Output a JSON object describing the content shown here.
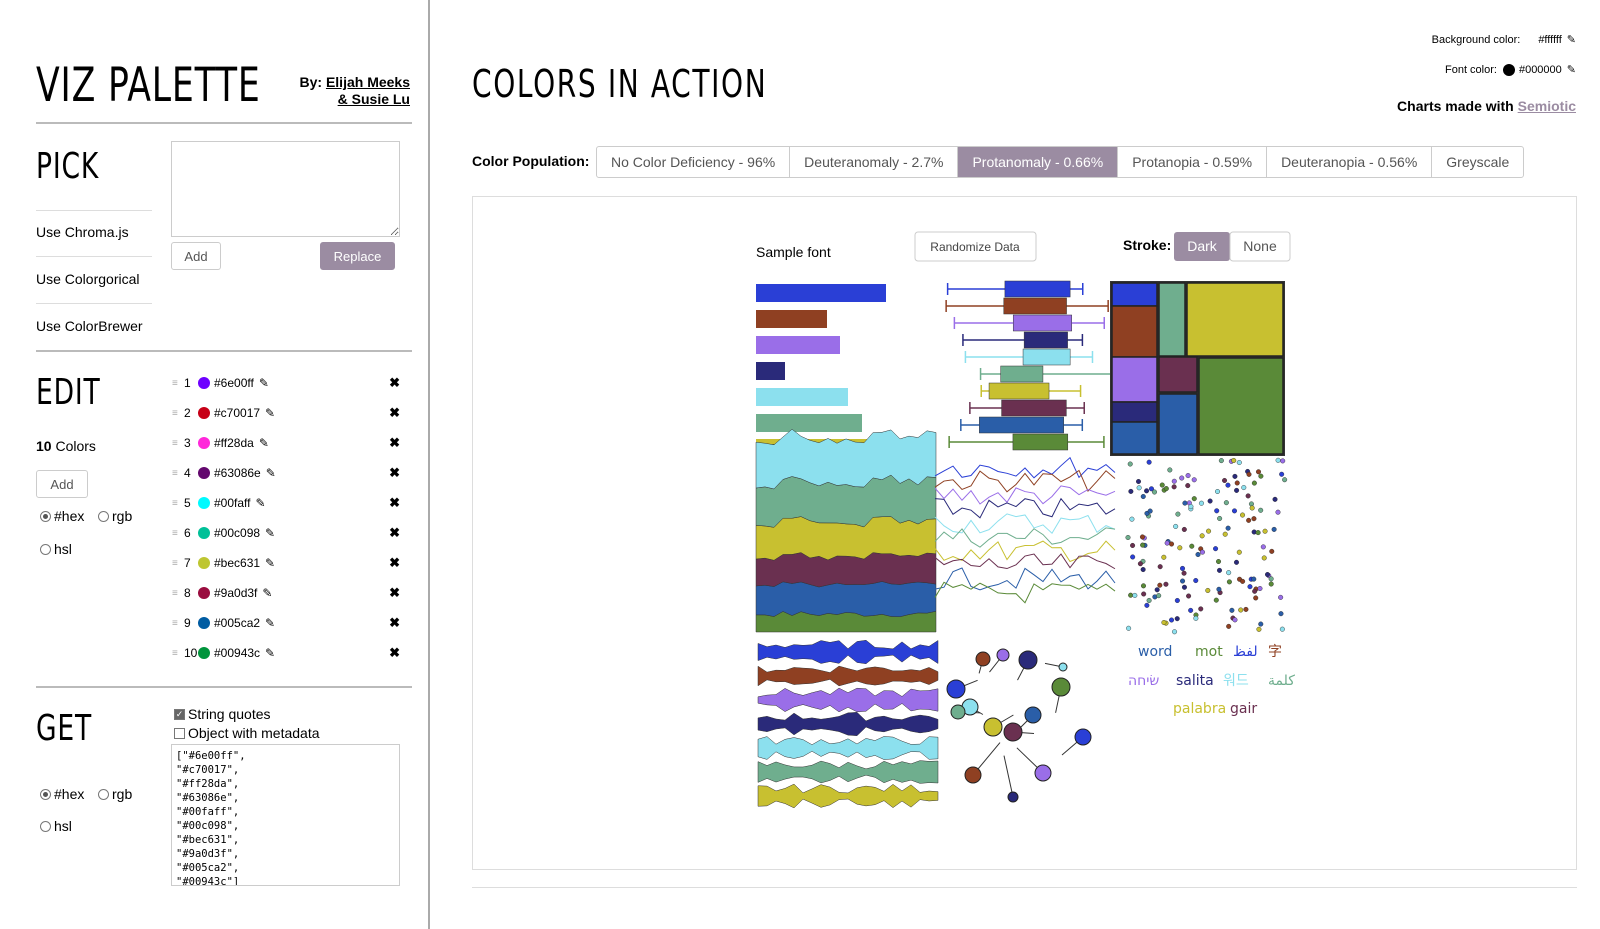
{
  "app": {
    "title": "VIZ PALETTE",
    "by_line1": "By: Elijah Meeks",
    "by_line2": "& Susie Lu"
  },
  "pick": {
    "title": "PICK",
    "links": [
      "Use Chroma.js",
      "Use Colorgorical",
      "Use ColorBrewer"
    ],
    "textarea_value": "",
    "add_label": "Add",
    "replace_label": "Replace"
  },
  "edit": {
    "title": "EDIT",
    "count": "10",
    "count_label": "Colors",
    "add_label": "Add",
    "formats": [
      "#hex",
      "rgb",
      "hsl"
    ],
    "selected_format": "#hex",
    "colors": [
      {
        "n": "1",
        "hex": "#6e00ff"
      },
      {
        "n": "2",
        "hex": "#c70017"
      },
      {
        "n": "3",
        "hex": "#ff28da"
      },
      {
        "n": "4",
        "hex": "#63086e"
      },
      {
        "n": "5",
        "hex": "#00faff"
      },
      {
        "n": "6",
        "hex": "#00c098"
      },
      {
        "n": "7",
        "hex": "#bec631"
      },
      {
        "n": "8",
        "hex": "#9a0d3f"
      },
      {
        "n": "9",
        "hex": "#005ca2"
      },
      {
        "n": "10",
        "hex": "#00943c"
      }
    ]
  },
  "get": {
    "title": "GET",
    "string_quotes_label": "String quotes",
    "string_quotes_checked": true,
    "object_meta_label": "Object with metadata",
    "object_meta_checked": false,
    "formats": [
      "#hex",
      "rgb",
      "hsl"
    ],
    "selected_format": "#hex",
    "output": "[\"#6e00ff\",\n\"#c70017\",\n\"#ff28da\",\n\"#63086e\",\n\"#00faff\",\n\"#00c098\",\n\"#bec631\",\n\"#9a0d3f\",\n\"#005ca2\",\n\"#00943c\"]"
  },
  "main": {
    "title": "COLORS IN ACTION",
    "background_label": "Background color:",
    "background_value": "#ffffff",
    "font_label": "Font color:",
    "font_value": "#000000",
    "made_with_prefix": "Charts made with",
    "made_with_link": "Semiotic",
    "population_label": "Color Population:",
    "tabs": [
      "No Color Deficiency - 96%",
      "Deuteranomaly - 2.7%",
      "Protanomaly - 0.66%",
      "Protanopia - 0.59%",
      "Deuteranopia - 0.56%",
      "Greyscale"
    ],
    "active_tab": "Protanomaly - 0.66%",
    "sample_font_label": "Sample font",
    "randomize_label": "Randomize Data",
    "stroke_label": "Stroke:",
    "stroke_options": [
      "Dark",
      "None"
    ],
    "stroke_selected": "Dark",
    "words": [
      "word",
      "mot",
      "لفظ",
      "字",
      "שׂיחה",
      "salita",
      "워드",
      "كلمة",
      "palabra",
      "gair"
    ]
  },
  "sim_colors": [
    "#2a3fd6",
    "#8f4022",
    "#9a6ee8",
    "#2a2a7a",
    "#8ce0ee",
    "#6fae8e",
    "#c8c030",
    "#6a3050",
    "#2a5ea8",
    "#5a8a38"
  ]
}
